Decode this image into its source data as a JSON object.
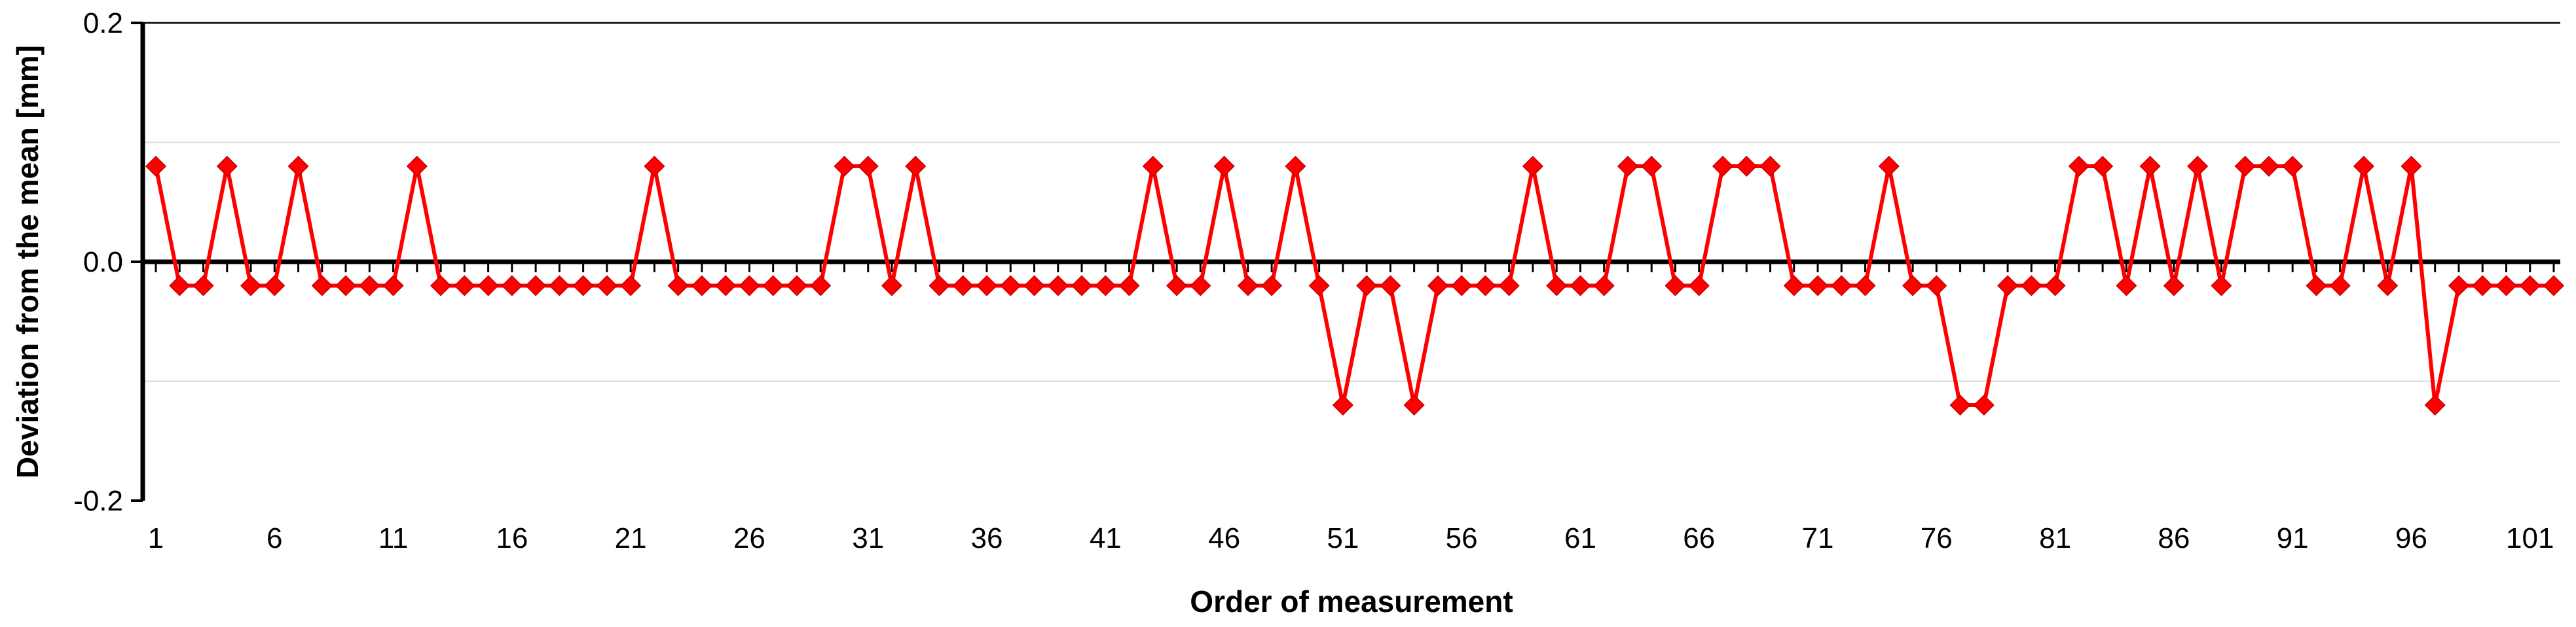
{
  "chart_data": {
    "type": "line",
    "title": "",
    "xlabel": "Order of measurement",
    "ylabel": "Deviation from the mean [mm]",
    "ylim": [
      -0.2,
      0.2
    ],
    "y_ticks": [
      {
        "value": 0.2,
        "label": "0.2"
      },
      {
        "value": 0.0,
        "label": "0.0"
      },
      {
        "value": -0.2,
        "label": "-0.2"
      }
    ],
    "x_ticks": [
      1,
      6,
      11,
      16,
      21,
      26,
      31,
      36,
      41,
      46,
      51,
      56,
      61,
      66,
      71,
      76,
      81,
      86,
      91,
      96,
      101
    ],
    "xlim": [
      1,
      102
    ],
    "grid": "horizontal",
    "marker": "diamond",
    "color": "#ff0000",
    "series": [
      {
        "x": [
          1,
          2,
          3,
          4,
          5,
          6,
          7,
          8,
          9,
          10,
          11,
          12,
          13,
          14,
          15,
          16,
          17,
          18,
          19,
          20,
          21,
          22,
          23,
          24,
          25,
          26,
          27,
          28,
          29,
          30,
          31,
          32,
          33,
          34,
          35,
          36,
          37,
          38,
          39,
          40,
          41,
          42,
          43,
          44,
          45,
          46,
          47,
          48,
          49,
          50,
          51,
          52,
          53,
          54,
          55,
          56,
          57,
          58,
          59,
          60,
          61,
          62,
          63,
          64,
          65,
          66,
          67,
          68,
          69,
          70,
          71,
          72,
          73,
          74,
          75,
          76,
          77,
          78,
          79,
          80,
          81,
          82,
          83,
          84,
          85,
          86,
          87,
          88,
          89,
          90,
          91,
          92,
          93,
          94,
          95,
          96,
          97,
          98,
          99,
          100,
          101,
          102
        ],
        "values": [
          0.08,
          -0.02,
          -0.02,
          0.08,
          -0.02,
          -0.02,
          0.08,
          -0.02,
          -0.02,
          -0.02,
          -0.02,
          0.08,
          -0.02,
          -0.02,
          -0.02,
          -0.02,
          -0.02,
          -0.02,
          -0.02,
          -0.02,
          -0.02,
          0.08,
          -0.02,
          -0.02,
          -0.02,
          -0.02,
          -0.02,
          -0.02,
          -0.02,
          0.08,
          0.08,
          -0.02,
          0.08,
          -0.02,
          -0.02,
          -0.02,
          -0.02,
          -0.02,
          -0.02,
          -0.02,
          -0.02,
          -0.02,
          0.08,
          -0.02,
          -0.02,
          0.08,
          -0.02,
          -0.02,
          0.08,
          -0.02,
          -0.12,
          -0.02,
          -0.02,
          -0.12,
          -0.02,
          -0.02,
          -0.02,
          -0.02,
          0.08,
          -0.02,
          -0.02,
          -0.02,
          0.08,
          0.08,
          -0.02,
          -0.02,
          0.08,
          0.08,
          0.08,
          -0.02,
          -0.02,
          -0.02,
          -0.02,
          0.08,
          -0.02,
          -0.02,
          -0.12,
          -0.12,
          -0.02,
          -0.02,
          -0.02,
          0.08,
          0.08,
          -0.02,
          0.08,
          -0.02,
          0.08,
          -0.02,
          0.08,
          0.08,
          0.08,
          -0.02,
          -0.02,
          0.08,
          -0.02,
          0.08,
          -0.12,
          -0.02,
          -0.02,
          -0.02,
          -0.02,
          -0.02
        ]
      }
    ]
  }
}
